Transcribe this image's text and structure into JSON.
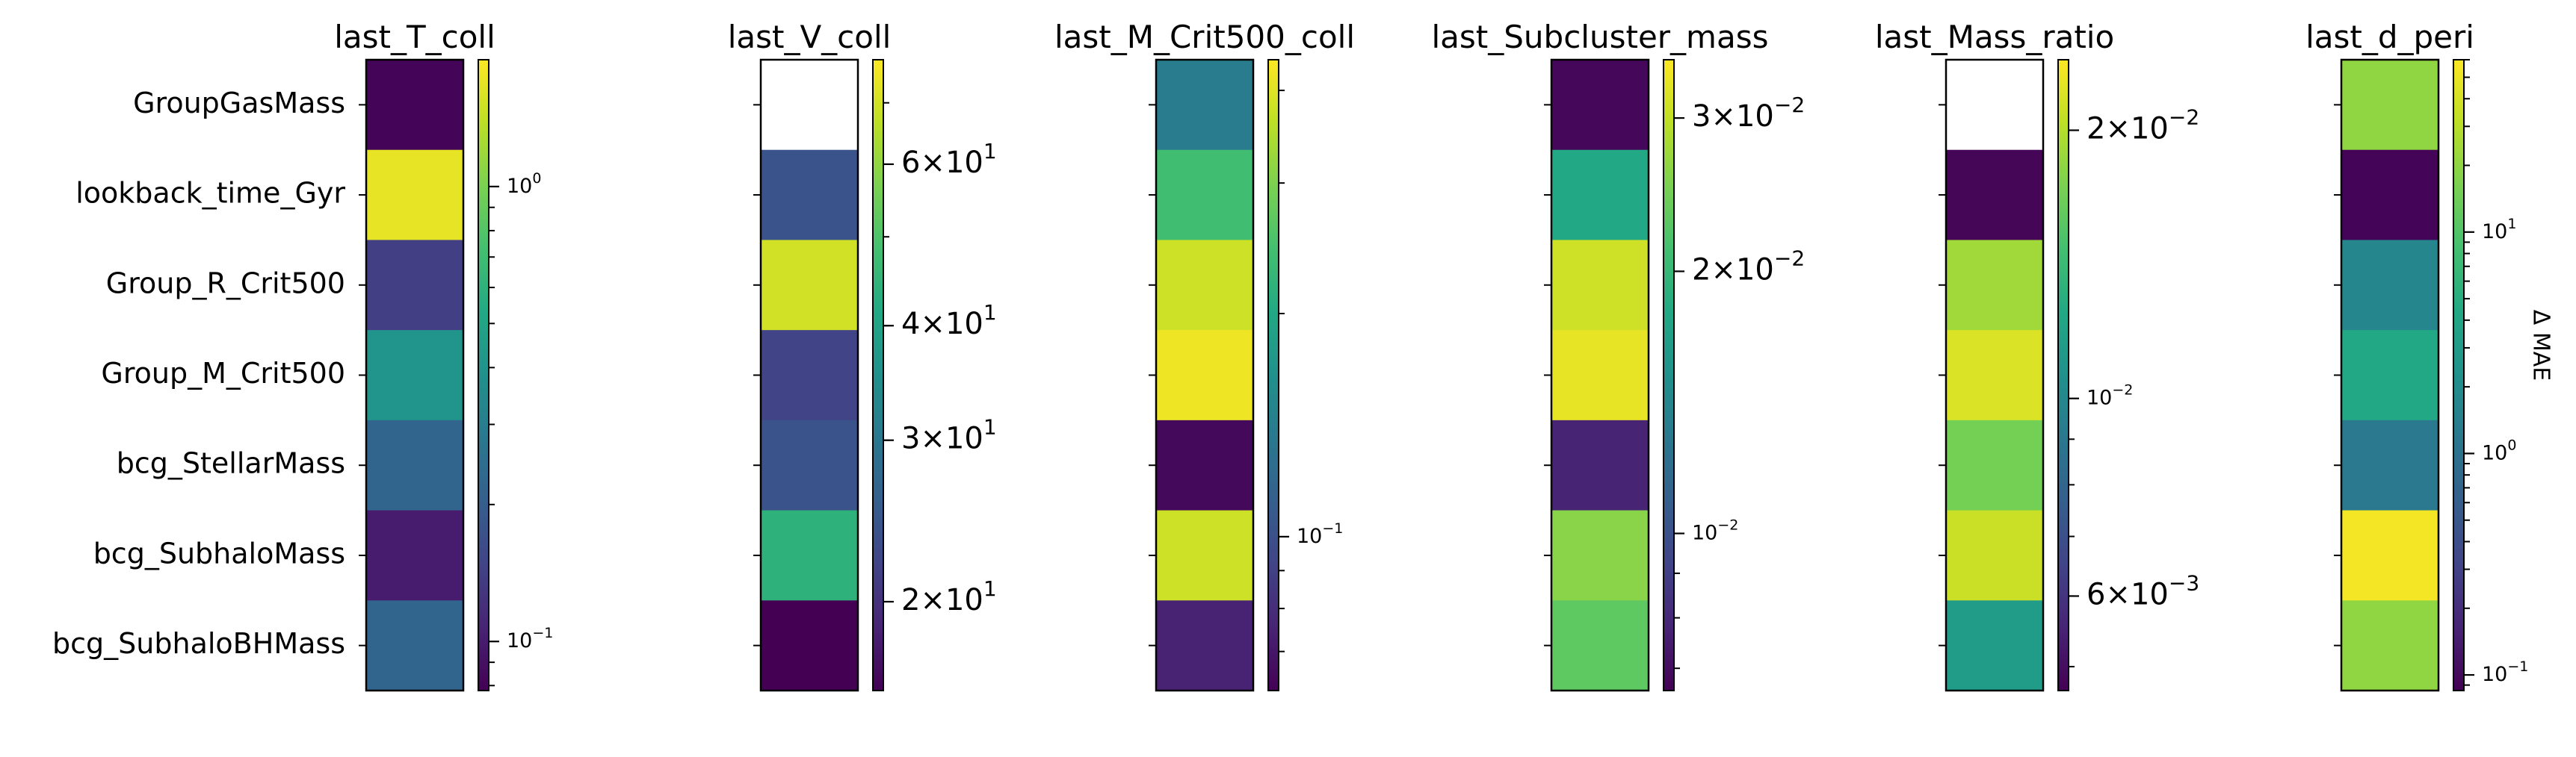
{
  "chart_data": {
    "type": "heatmap",
    "rows": [
      "GroupGasMass",
      "lookback_time_Gyr",
      "Group_R_Crit500",
      "Group_M_Crit500",
      "bcg_StellarMass",
      "bcg_SubhaloMass",
      "bcg_SubhaloBHMass"
    ],
    "colormap": "viridis",
    "colorbar_scale": "log",
    "colorbar_label": "Δ MAE",
    "grid": false,
    "panels": [
      {
        "title": "last_T_coll",
        "values": [
          0.08,
          1.7,
          0.14,
          0.4,
          0.22,
          0.1,
          0.22
        ],
        "clim": [
          0.078,
          1.9
        ],
        "ticks": [
          {
            "value": 1.0,
            "base": "10",
            "exp": "0",
            "minor": true
          },
          {
            "value": 0.1,
            "base": "10",
            "exp": "−1",
            "minor": true
          }
        ]
      },
      {
        "title": "last_V_coll",
        "values": [
          null,
          24,
          70,
          22,
          24,
          44,
          16
        ],
        "clim": [
          16,
          78
        ],
        "ticks": [
          {
            "value": 60,
            "mantissa": "6",
            "base": "10",
            "exp": "1",
            "minor": false
          },
          {
            "value": 40,
            "mantissa": "4",
            "base": "10",
            "exp": "1",
            "minor": false
          },
          {
            "value": 30,
            "mantissa": "3",
            "base": "10",
            "exp": "1",
            "minor": false
          },
          {
            "value": 20,
            "mantissa": "2",
            "base": "10",
            "exp": "1",
            "minor": false
          }
        ]
      },
      {
        "title": "last_M_Crit500_coll",
        "values": [
          0.14,
          0.24,
          0.38,
          0.42,
          0.065,
          0.38,
          0.075
        ],
        "clim": [
          0.062,
          0.44
        ],
        "ticks": [
          {
            "value": 0.1,
            "base": "10",
            "exp": "−1",
            "minor": true
          }
        ]
      },
      {
        "title": "last_Subcluster_mass",
        "values": [
          0.0068,
          0.018,
          0.031,
          0.033,
          0.0078,
          0.026,
          0.023
        ],
        "clim": [
          0.0066,
          0.035
        ],
        "ticks": [
          {
            "value": 0.03,
            "mantissa": "3",
            "base": "10",
            "exp": "−2",
            "minor": false
          },
          {
            "value": 0.02,
            "mantissa": "2",
            "base": "10",
            "exp": "−2",
            "minor": false
          },
          {
            "value": 0.01,
            "base": "10",
            "exp": "−2",
            "minor": true
          }
        ]
      },
      {
        "title": "last_Mass_ratio",
        "values": [
          null,
          0.0048,
          0.019,
          0.022,
          0.017,
          0.021,
          0.0115
        ],
        "clim": [
          0.0047,
          0.024
        ],
        "ticks": [
          {
            "value": 0.02,
            "mantissa": "2",
            "base": "10",
            "exp": "−2",
            "minor": false
          },
          {
            "value": 0.01,
            "base": "10",
            "exp": "−2",
            "minor": true
          },
          {
            "value": 0.006,
            "mantissa": "6",
            "base": "10",
            "exp": "−3",
            "minor": false
          }
        ]
      },
      {
        "title": "last_d_peri",
        "values": [
          20,
          0.09,
          1.7,
          4.3,
          1.2,
          55,
          20
        ],
        "clim": [
          0.085,
          60
        ],
        "ticks": [
          {
            "value": 10,
            "base": "10",
            "exp": "1",
            "minor": true
          },
          {
            "value": 1,
            "base": "10",
            "exp": "0",
            "minor": true
          },
          {
            "value": 0.1,
            "base": "10",
            "exp": "−1",
            "minor": true
          }
        ]
      }
    ]
  }
}
